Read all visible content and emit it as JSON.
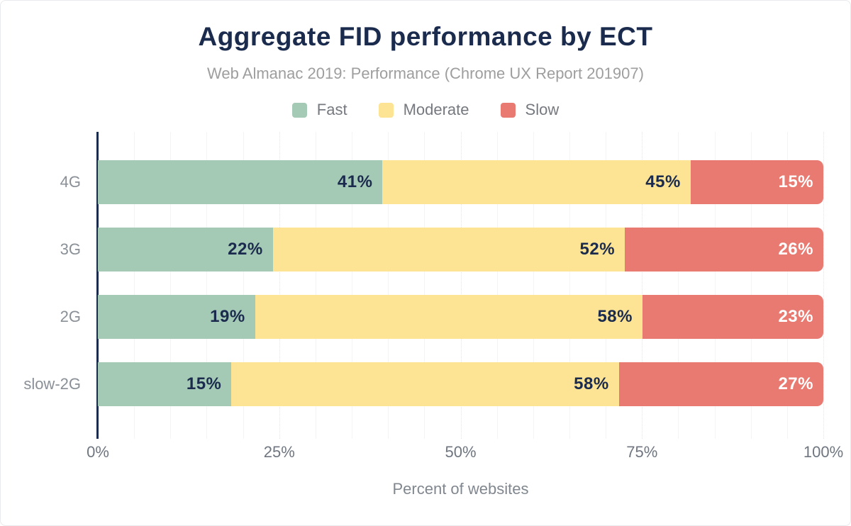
{
  "title": "Aggregate FID performance by ECT",
  "subtitle": "Web Almanac 2019: Performance (Chrome UX Report 201907)",
  "colors": {
    "title_navy": "#1b2b4d",
    "fast": "#a4c9b4",
    "moderate": "#fde394",
    "slow": "#e87a71",
    "label_on_light_segment": "#1b2b4d",
    "label_on_slow_segment": "#ffffff",
    "axis_line": "#1b2b4d",
    "muted_text": "#8a9097"
  },
  "chart_data": {
    "type": "bar",
    "orientation": "horizontal",
    "stacked": true,
    "title": "Aggregate FID performance by ECT",
    "subtitle": "Web Almanac 2019: Performance (Chrome UX Report 201907)",
    "categories": [
      "4G",
      "3G",
      "2G",
      "slow-2G"
    ],
    "series": [
      {
        "name": "Fast",
        "color": "#a4c9b4",
        "label_color": "#1b2b4d",
        "values": [
          41,
          22,
          19,
          15
        ]
      },
      {
        "name": "Moderate",
        "color": "#fde394",
        "label_color": "#1b2b4d",
        "values": [
          45,
          52,
          58,
          58
        ]
      },
      {
        "name": "Slow",
        "color": "#e87a71",
        "label_color": "#ffffff",
        "values": [
          15,
          26,
          23,
          27
        ]
      }
    ],
    "value_suffix": "%",
    "xlabel": "Percent of websites",
    "ylabel": "",
    "x_ticks": [
      "0%",
      "25%",
      "50%",
      "75%",
      "100%"
    ],
    "xlim": [
      0,
      100
    ],
    "grid": "vertical, minor every 5%, major dotted every 25%",
    "legend_position": "top center"
  }
}
